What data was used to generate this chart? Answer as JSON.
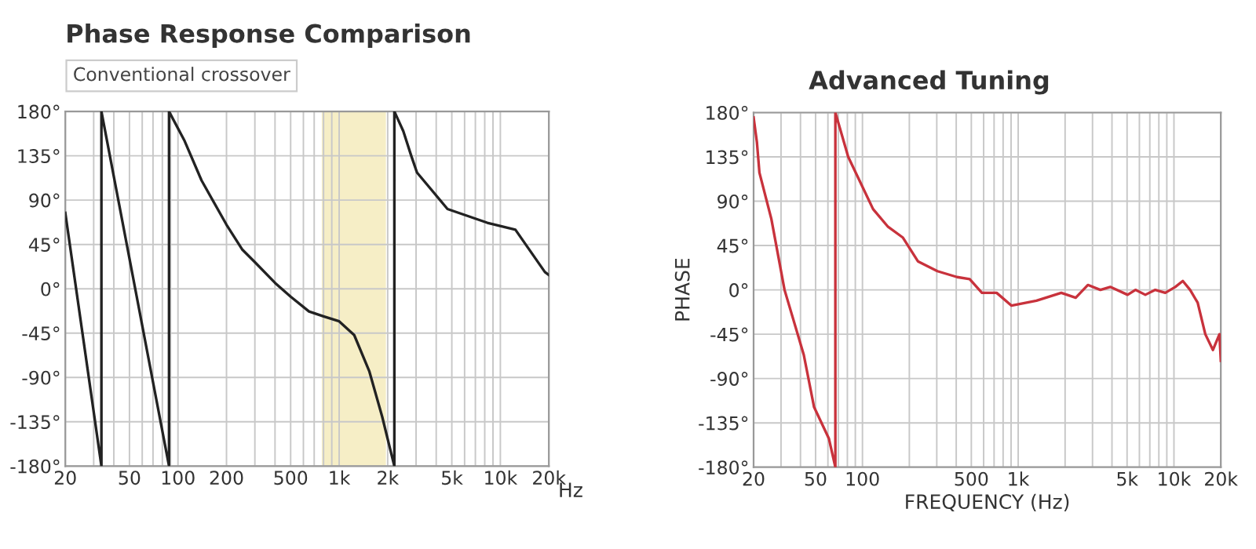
{
  "chart_data": [
    {
      "type": "line",
      "title": "Phase Response Comparison",
      "subtitle": "Conventional crossover",
      "xlabel": "Hz",
      "log": "x",
      "grid": true,
      "legend": false,
      "x": [
        20,
        33.5,
        33.5,
        88,
        88,
        110,
        140,
        200,
        250,
        300,
        400,
        500,
        650,
        800,
        1000,
        1240,
        1540,
        1850,
        2200,
        2200,
        2500,
        2800,
        3040,
        4700,
        8300,
        12400,
        18900,
        20000
      ],
      "series": [
        {
          "color": "#222222",
          "values": [
            77,
            -180,
            180,
            -180,
            180,
            150,
            110,
            65,
            40,
            27,
            6,
            -8,
            -23,
            -28,
            -33,
            -47,
            -84,
            -130,
            -180,
            180,
            160,
            135,
            118,
            81,
            67,
            60,
            17,
            14
          ]
        }
      ],
      "bands": [
        {
          "axis": "x",
          "from": 780,
          "to": 1950,
          "color": "#f6eec6"
        }
      ],
      "xlim": [
        20,
        20000
      ],
      "ylim": [
        -180,
        180
      ],
      "xticks": [
        20,
        {
          "value": 30,
          "label": null
        },
        {
          "value": 40,
          "label": null
        },
        50,
        {
          "value": 60,
          "label": null
        },
        {
          "value": 70,
          "label": null
        },
        {
          "value": 80,
          "label": null
        },
        {
          "value": 90,
          "label": null
        },
        100,
        200,
        {
          "value": 300,
          "label": null
        },
        {
          "value": 400,
          "label": null
        },
        500,
        {
          "value": 600,
          "label": null
        },
        {
          "value": 700,
          "label": null
        },
        {
          "value": 800,
          "label": null
        },
        {
          "value": 900,
          "label": null
        },
        {
          "value": 1000,
          "label": "1k"
        },
        {
          "value": 2000,
          "label": "2k"
        },
        {
          "value": 3000,
          "label": null
        },
        {
          "value": 4000,
          "label": null
        },
        {
          "value": 5000,
          "label": "5k"
        },
        {
          "value": 6000,
          "label": null
        },
        {
          "value": 7000,
          "label": null
        },
        {
          "value": 8000,
          "label": null
        },
        {
          "value": 9000,
          "label": null
        },
        {
          "value": 10000,
          "label": "10k"
        },
        {
          "value": 20000,
          "label": "20k"
        }
      ],
      "yticks": [
        {
          "value": -180,
          "label": "-180°"
        },
        {
          "value": -135,
          "label": "-135°"
        },
        {
          "value": -90,
          "label": "-90°"
        },
        {
          "value": -45,
          "label": "-45°"
        },
        {
          "value": 0,
          "label": "0°"
        },
        {
          "value": 45,
          "label": "45°"
        },
        {
          "value": 90,
          "label": "90°"
        },
        {
          "value": 135,
          "label": "135°"
        },
        {
          "value": 180,
          "label": "180°"
        }
      ]
    },
    {
      "type": "line",
      "title": "Advanced Tuning",
      "xlabel": "FREQUENCY (Hz)",
      "ylabel": "PHASE",
      "log": "x",
      "grid": true,
      "legend": false,
      "x": [
        20,
        21,
        21.8,
        26,
        31.6,
        42,
        48.9,
        60.9,
        67,
        67,
        81,
        117,
        146,
        182,
        227,
        303,
        405,
        488,
        585,
        727,
        906,
        1310,
        1890,
        2340,
        2800,
        3370,
        3900,
        5040,
        5660,
        6550,
        7590,
        8800,
        10200,
        11400,
        12700,
        14200,
        15900,
        17800,
        19600,
        20000
      ],
      "series": [
        {
          "color": "#c8323c",
          "values": [
            175,
            150,
            119,
            72,
            0,
            -66,
            -119,
            -151,
            -180,
            180,
            135,
            82,
            64,
            53,
            29,
            19,
            13,
            11,
            -3,
            -3,
            -16,
            -11,
            -3,
            -8,
            5,
            0,
            3,
            -5,
            0,
            -5,
            0,
            -3,
            3,
            9,
            0,
            -13,
            -45,
            -61,
            -45,
            -72
          ]
        }
      ],
      "xlim": [
        20,
        20000
      ],
      "ylim": [
        -180,
        180
      ],
      "xticks": [
        20,
        {
          "value": 30,
          "label": null
        },
        {
          "value": 40,
          "label": null
        },
        50,
        {
          "value": 60,
          "label": null
        },
        {
          "value": 70,
          "label": null
        },
        {
          "value": 80,
          "label": null
        },
        {
          "value": 90,
          "label": null
        },
        100,
        {
          "value": 200,
          "label": null
        },
        {
          "value": 300,
          "label": null
        },
        {
          "value": 400,
          "label": null
        },
        500,
        {
          "value": 600,
          "label": null
        },
        {
          "value": 700,
          "label": null
        },
        {
          "value": 800,
          "label": null
        },
        {
          "value": 900,
          "label": null
        },
        {
          "value": 1000,
          "label": "1k"
        },
        {
          "value": 2000,
          "label": null
        },
        {
          "value": 3000,
          "label": null
        },
        {
          "value": 4000,
          "label": null
        },
        {
          "value": 5000,
          "label": "5k"
        },
        {
          "value": 6000,
          "label": null
        },
        {
          "value": 7000,
          "label": null
        },
        {
          "value": 8000,
          "label": null
        },
        {
          "value": 9000,
          "label": null
        },
        {
          "value": 10000,
          "label": "10k"
        },
        {
          "value": 20000,
          "label": "20k"
        }
      ],
      "yticks": [
        {
          "value": -180,
          "label": "-180°"
        },
        {
          "value": -135,
          "label": "-135°"
        },
        {
          "value": -90,
          "label": "-90°"
        },
        {
          "value": -45,
          "label": "-45°"
        },
        {
          "value": 0,
          "label": "0°"
        },
        {
          "value": 45,
          "label": "45°"
        },
        {
          "value": 90,
          "label": "90°"
        },
        {
          "value": 135,
          "label": "135°"
        },
        {
          "value": 180,
          "label": "180°"
        }
      ]
    }
  ]
}
